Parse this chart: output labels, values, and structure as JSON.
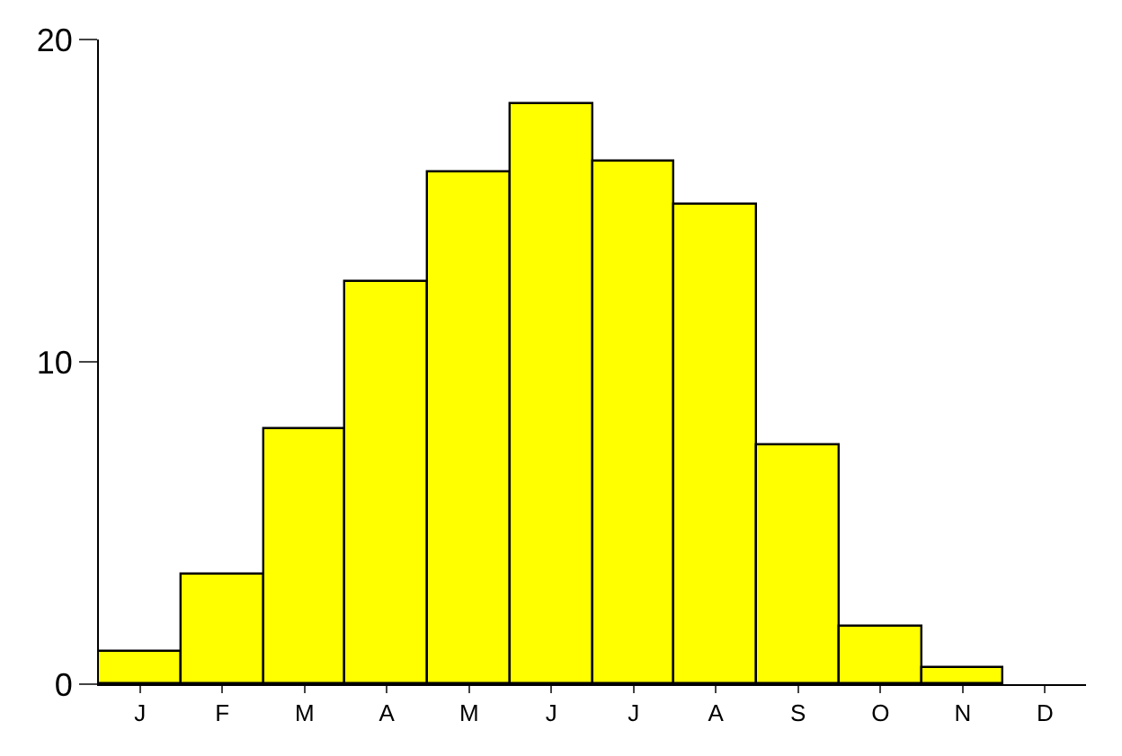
{
  "chart_data": {
    "type": "bar",
    "categories": [
      "J",
      "F",
      "M",
      "A",
      "M",
      "J",
      "J",
      "A",
      "S",
      "O",
      "N",
      "D"
    ],
    "values": [
      1.0,
      3.4,
      7.9,
      12.5,
      15.9,
      18.0,
      16.2,
      14.9,
      7.4,
      1.8,
      0.5,
      null
    ],
    "color": "#ffff00",
    "ylim": [
      0,
      20
    ],
    "yticks": [
      0,
      10,
      20
    ]
  }
}
